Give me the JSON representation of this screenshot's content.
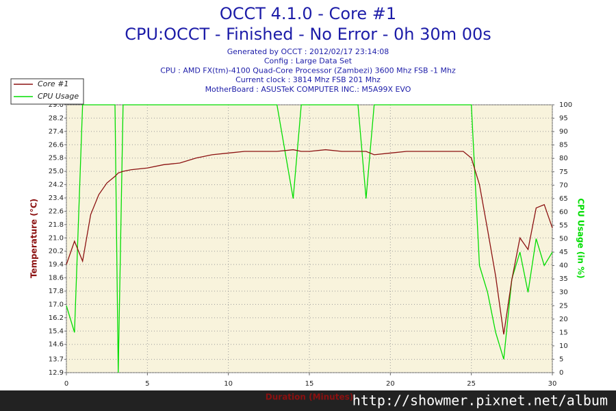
{
  "chart_data": {
    "type": "line",
    "title": "OCCT 4.1.0 - Core #1",
    "subtitle": "CPU:OCCT - Finished - No Error - 0h 30m 00s",
    "info": [
      "Generated by OCCT : 2012/02/17 23:14:08",
      "Config : Large Data Set",
      "CPU : AMD FX(tm)-4100 Quad-Core Processor (Zambezi) 3600 Mhz FSB -1 Mhz",
      "Current clock : 3814 Mhz FSB 201 Mhz",
      "MotherBoard : ASUSTeK COMPUTER INC.: M5A99X EVO"
    ],
    "xlabel": "Duration (Minutes)",
    "ylabel": "Temperature (°C)",
    "y2label": "CPU Usage (in %)",
    "watermark": "http://showmer.pixnet.net/album",
    "x": [
      0,
      0.5,
      1,
      1.5,
      2,
      2.5,
      3,
      3.2,
      3.5,
      4,
      5,
      6,
      7,
      8,
      9,
      10,
      11,
      12,
      13,
      14,
      14.5,
      15,
      16,
      17,
      18,
      18.5,
      19,
      20,
      21,
      22,
      23,
      24,
      24.5,
      25,
      25.5,
      26,
      26.5,
      27,
      27.5,
      28,
      28.5,
      29,
      29.5,
      30
    ],
    "series": [
      {
        "name": "Core #1",
        "color": "#8b1010",
        "axis": "y",
        "values": [
          19.4,
          20.8,
          19.6,
          22.4,
          23.6,
          24.3,
          24.7,
          24.9,
          25.0,
          25.1,
          25.2,
          25.4,
          25.5,
          25.8,
          26.0,
          26.1,
          26.2,
          26.2,
          26.2,
          26.3,
          26.2,
          26.2,
          26.3,
          26.2,
          26.2,
          26.2,
          26.0,
          26.1,
          26.2,
          26.2,
          26.2,
          26.2,
          26.2,
          25.8,
          24.2,
          21.5,
          18.7,
          15.2,
          18.5,
          21.0,
          20.3,
          22.8,
          23.0,
          21.6
        ]
      },
      {
        "name": "CPU Usage",
        "color": "#00dd00",
        "axis": "y2",
        "values": [
          25,
          15,
          100,
          100,
          100,
          100,
          100,
          0,
          100,
          100,
          100,
          100,
          100,
          100,
          100,
          100,
          100,
          100,
          100,
          65,
          100,
          100,
          100,
          100,
          100,
          65,
          100,
          100,
          100,
          100,
          100,
          100,
          100,
          100,
          40,
          30,
          15,
          5,
          35,
          45,
          30,
          50,
          40,
          45
        ]
      }
    ],
    "xlim": [
      0,
      30
    ],
    "xticks": [
      0,
      5,
      10,
      15,
      20,
      25,
      30
    ],
    "ylim": [
      12.9,
      29
    ],
    "yticks": [
      12.9,
      13.7,
      14.6,
      15.4,
      16.2,
      {
        "value": 17,
        "label": "17.0"
      },
      17.8,
      18.6,
      19.4,
      20.2,
      {
        "value": 21,
        "label": "21.0"
      },
      21.8,
      22.6,
      23.4,
      24.2,
      {
        "value": 25,
        "label": "25.0"
      },
      25.8,
      26.6,
      27.4,
      28.2,
      {
        "value": 29,
        "label": "29.0"
      }
    ],
    "y2lim": [
      0,
      100
    ],
    "y2ticks": [
      0,
      5,
      10,
      15,
      20,
      25,
      30,
      35,
      40,
      45,
      50,
      55,
      60,
      65,
      70,
      75,
      80,
      85,
      90,
      95,
      100
    ],
    "grid": true,
    "legend": "top-left"
  }
}
